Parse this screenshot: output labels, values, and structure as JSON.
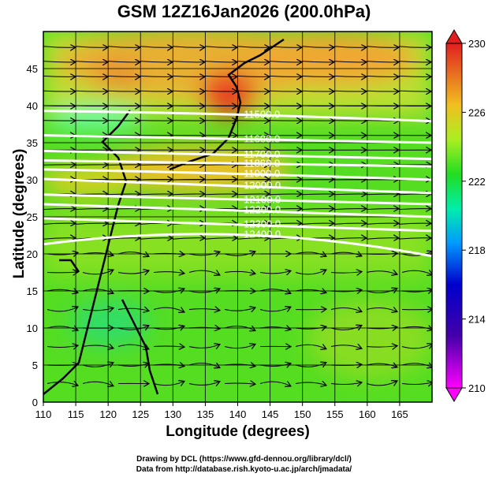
{
  "title": "GSM 12Z16Jan2026 (200.0hPa)",
  "xlabel": "Longitude (degrees)",
  "ylabel": "Latitude  (degrees)",
  "credits": [
    "Drawing by DCL (https://www.gfd-dennou.org/library/dcl/)",
    "Data from http://database.rish.kyoto-u.ac.jp/arch/jmadata/"
  ],
  "chart_data": {
    "type": "map",
    "xlim": [
      110,
      170
    ],
    "ylim": [
      0,
      50
    ],
    "xticks": [
      110,
      115,
      120,
      125,
      130,
      135,
      140,
      145,
      150,
      155,
      160,
      165
    ],
    "yticks": [
      0,
      5,
      10,
      15,
      20,
      25,
      30,
      35,
      40,
      45
    ],
    "grid": true,
    "colorbar": {
      "min": 210,
      "max": 230,
      "ticks": [
        210,
        214,
        218,
        222,
        226,
        230
      ],
      "colors": [
        "#ff00ff",
        "#0000aa",
        "#00aaff",
        "#00ffcc",
        "#22dd22",
        "#ccee22",
        "#f0a020",
        "#e83020"
      ]
    },
    "contours": [
      {
        "label": "11500.0",
        "lat": [
          39.3,
          38.8,
          37.9
        ]
      },
      {
        "label": "11600.0",
        "lat": [
          36,
          35.5,
          35
        ]
      },
      {
        "label": "11700.0",
        "lat": [
          33.9,
          33.4,
          32.8
        ]
      },
      {
        "label": "11800.0",
        "lat": [
          32.6,
          32.2,
          31.8
        ]
      },
      {
        "label": "11900.0",
        "lat": [
          31.4,
          30.8,
          30
        ]
      },
      {
        "label": "12000.0",
        "lat": [
          30.1,
          29.2,
          28.2
        ]
      },
      {
        "label": "12100.0",
        "lat": [
          28,
          27.3,
          26.7
        ]
      },
      {
        "label": "12200.0",
        "lat": [
          26.7,
          25.9,
          25
        ]
      },
      {
        "label": "12300.0",
        "lat": [
          24.8,
          24,
          23.1
        ]
      },
      {
        "label": "12400.0",
        "lat": [
          21.3,
          22.6,
          19.7
        ]
      }
    ],
    "contour_lons": [
      110,
      140,
      170
    ]
  }
}
